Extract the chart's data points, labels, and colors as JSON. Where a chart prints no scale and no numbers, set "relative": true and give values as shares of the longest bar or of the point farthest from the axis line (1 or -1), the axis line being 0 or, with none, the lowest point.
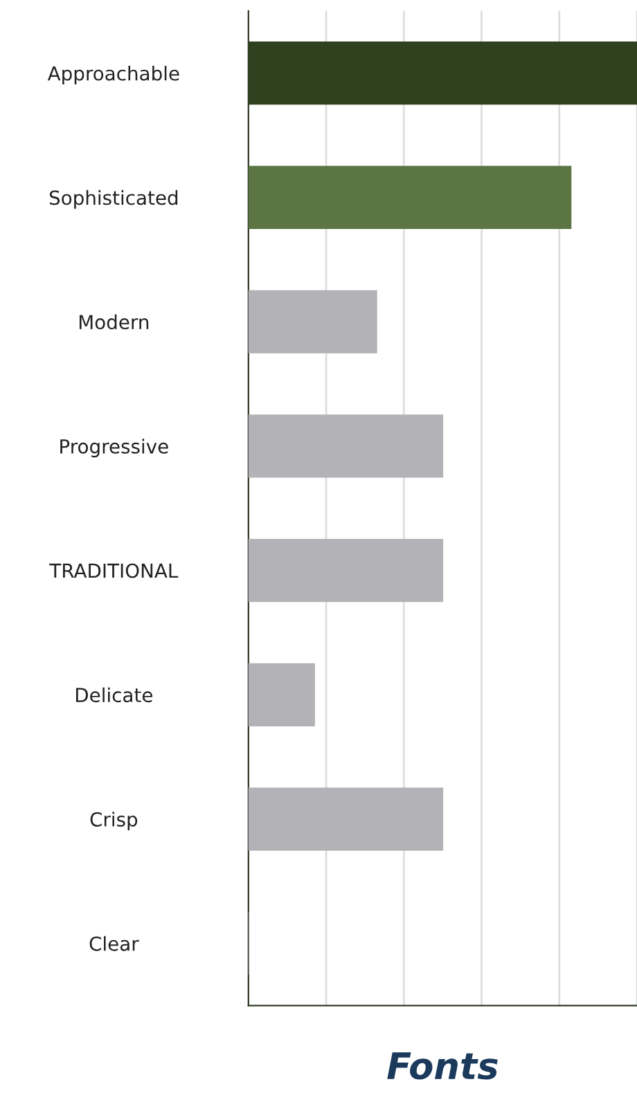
{
  "chart_data": {
    "type": "bar",
    "orientation": "horizontal",
    "relative": true,
    "title": "Fonts",
    "categories": [
      "Approachable",
      "Sophisticated",
      "Modern",
      "Progressive",
      "TRADITIONAL",
      "Delicate",
      "Crisp",
      "Clear"
    ],
    "values": [
      1,
      0.83,
      0.33,
      0.5,
      0.5,
      0.17,
      0.5,
      0
    ],
    "colors": [
      "#2f4220",
      "#5b7543",
      "#b3b3b7",
      "#b3b3b7",
      "#b3b3b7",
      "#b3b3b7",
      "#b3b3b7",
      "#b3b3b7"
    ],
    "grid": "x"
  }
}
